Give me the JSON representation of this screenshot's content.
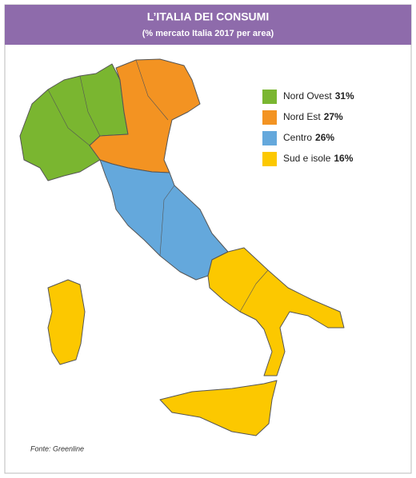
{
  "header": {
    "title": "L’ITALIA DEI CONSUMI",
    "subtitle": "(% mercato Italia 2017 per area)"
  },
  "legend": {
    "items": [
      {
        "name": "Nord Ovest",
        "value": 31,
        "value_label": "31%",
        "color": "#7ab630"
      },
      {
        "name": "Nord Est",
        "value": 27,
        "value_label": "27%",
        "color": "#f39322"
      },
      {
        "name": "Centro",
        "value": 26,
        "value_label": "26%",
        "color": "#64a8dc"
      },
      {
        "name": "Sud e isole",
        "value": 16,
        "value_label": "16%",
        "color": "#fcc800"
      }
    ]
  },
  "source": "Fonte: Greenline"
}
